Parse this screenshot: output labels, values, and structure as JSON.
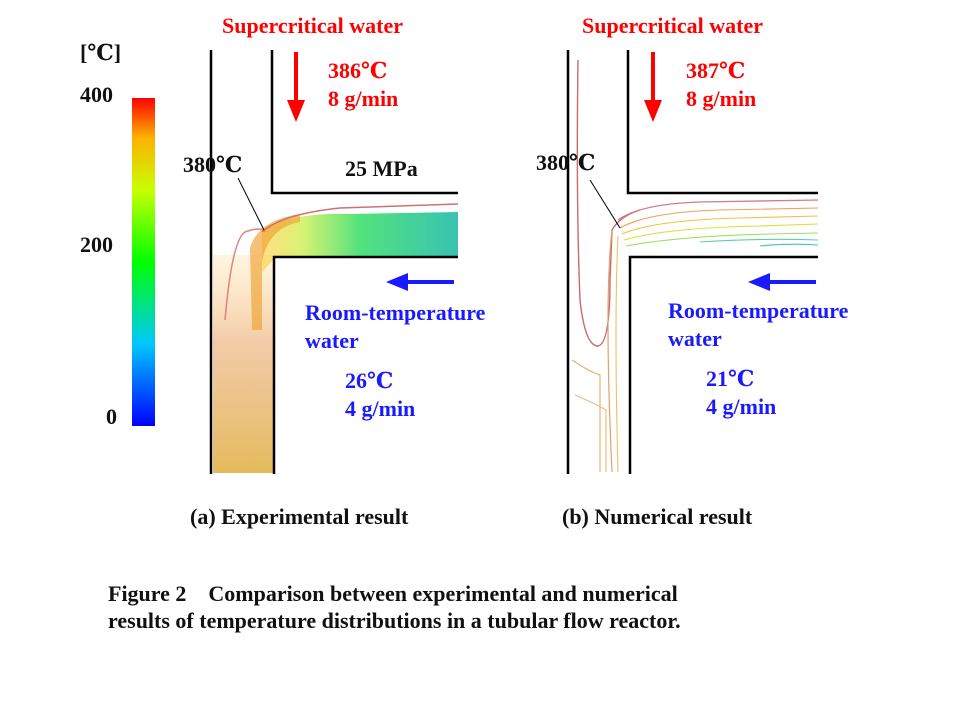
{
  "scale": {
    "unit": "[℃]",
    "ticks": [
      "400",
      "200",
      "0"
    ]
  },
  "panel_a": {
    "caption": "(a) Experimental result",
    "hot_label": "Supercritical water",
    "hot_temp": "386℃",
    "hot_flow": "8 g/min",
    "contour_label": "380℃",
    "pressure": "25 MPa",
    "cold_label_1": "Room-temperature",
    "cold_label_2": "water",
    "cold_temp": "26℃",
    "cold_flow": "4 g/min"
  },
  "panel_b": {
    "caption": "(b) Numerical result",
    "hot_label": "Supercritical water",
    "hot_temp": "387℃",
    "hot_flow": "8 g/min",
    "contour_label": "380℃",
    "cold_label_1": "Room-temperature",
    "cold_label_2": "water",
    "cold_temp": "21℃",
    "cold_flow": "4 g/min"
  },
  "figure_caption_line1": "Figure 2　Comparison between experimental and numerical",
  "figure_caption_line2": "results of temperature distributions in a tubular flow reactor.",
  "colors": {
    "hot": "#ff0000",
    "cold": "#1a1aff"
  }
}
